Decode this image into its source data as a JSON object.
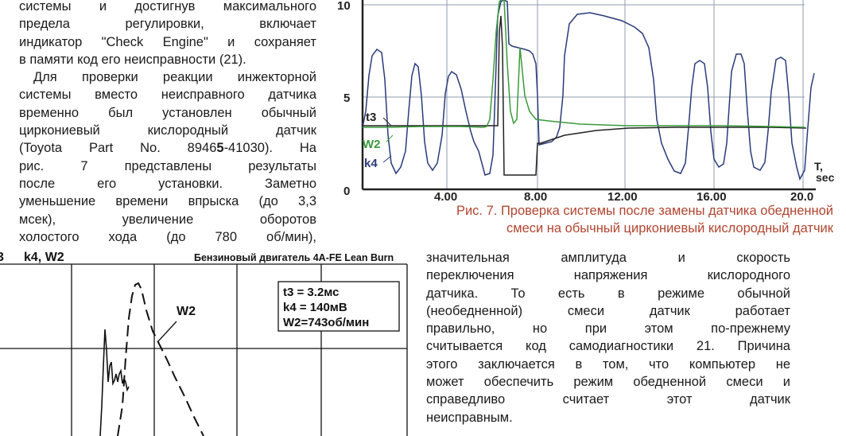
{
  "left_column": {
    "lines": [
      "системы и достигнув максимального",
      "предела регулировки, включает",
      "индикатор \"Check Engine\" и сохраняет",
      "в памяти код его неисправности (21).",
      "Для проверки реакции инжекторной",
      "системы вместо неисправного датчика",
      "временно был установлен обычный",
      "циркониевый кислородный датчик",
      "(Toyota Part No. 8946",
      "5",
      "-41030). На",
      "рис. 7 представлены результаты",
      "после его установки. Заметно",
      "уменьшение времени впрыска (до 3,3",
      "мсек), увеличение оборотов",
      "холостого хода (до 780 об/мин),"
    ]
  },
  "top_graph": {
    "y_ticks": [
      "10",
      "5",
      "0"
    ],
    "x_ticks": [
      "4.00",
      "8.00",
      "12.00",
      "16.00",
      "20.0"
    ],
    "x_unit": "T,",
    "x_unit2": "sec",
    "series_labels": [
      "t3",
      "W2",
      "k4"
    ],
    "colors": {
      "t3": "#1a1a1a",
      "W2": "#3a9a3a",
      "k4": "#2a3a7a",
      "grid": "#8f9bb0",
      "axis": "#222"
    }
  },
  "caption": {
    "line1": "Рис. 7. Проверка системы после замены датчика обедненной",
    "line2": "смеси на обычный циркониевый кислородный датчик"
  },
  "bottom_graph": {
    "corner_label": "3",
    "title_left": "k4, W2",
    "title_right": "Бензиновый двигатель 4A-FE Lean Burn",
    "curve_label": "W2",
    "readout": [
      "t3  = 3.2мс",
      "k4 = 140мВ",
      "W2=743об/мин"
    ]
  },
  "right_column": {
    "lines": [
      "значительная амплитуда и скорость",
      "переключения напряжения кислородного",
      "датчика. То есть в режиме обычной",
      "(необедненной) смеси датчик работает",
      "правильно, но при этом по-прежнему",
      "считывается код самодиагностики 21. Причина",
      "этого заключается в том, что компьютер не",
      "может обеспечить режим обедненной смеси и",
      "справедливо считает этот датчик",
      "неисправным."
    ]
  }
}
